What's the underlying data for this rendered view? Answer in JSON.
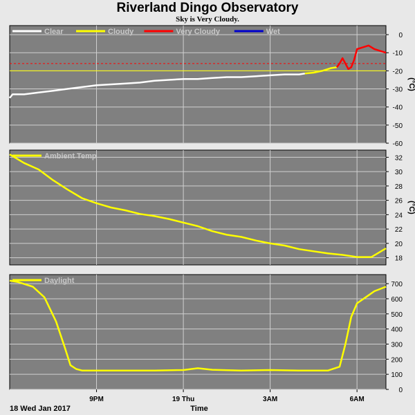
{
  "header": {
    "title": "Riverland Dingo Observatory",
    "subtitle": "Sky is Very Cloudy."
  },
  "footer": {
    "date_label": "18 Wed Jan 2017",
    "time_label": "Time"
  },
  "colors": {
    "background": "#e8e8e8",
    "plot_bg": "#808080",
    "grid": "#d0d0d0",
    "clear": "#ffffff",
    "cloudy": "#ffff00",
    "very_cloudy": "#ff0000",
    "wet": "#0000cc",
    "threshold": "#ff0000"
  },
  "chart_data": [
    {
      "type": "line",
      "name": "sky",
      "x_ticks": [
        "9PM",
        "19 Thu",
        "3AM",
        "6AM"
      ],
      "ylim": [
        -60,
        5
      ],
      "y_ticks": [
        0,
        -10,
        -20,
        -30,
        -40,
        -50,
        -60
      ],
      "ylabel": "(°C)",
      "legend_position": "top-left",
      "legend": [
        {
          "label": "Clear",
          "color": "#ffffff"
        },
        {
          "label": "Cloudy",
          "color": "#ffff00"
        },
        {
          "label": "Very Cloudy",
          "color": "#ff0000"
        },
        {
          "label": "Wet",
          "color": "#0000cc"
        }
      ],
      "thresholds": [
        {
          "value": -16,
          "style": "dashed",
          "color": "#ff0000"
        },
        {
          "value": -20,
          "style": "solid",
          "color": "#ffff00"
        }
      ],
      "series": [
        {
          "condition": "clear",
          "color": "#ffffff",
          "x": [
            0,
            0.1,
            0.5,
            1,
            1.5,
            2,
            2.5,
            3,
            3.5,
            4,
            4.5,
            5,
            5.5,
            6,
            6.5,
            7,
            7.5,
            8,
            8.5,
            9,
            9.5,
            10,
            10.2
          ],
          "y": [
            -35,
            -33,
            -33,
            -32,
            -31,
            -30,
            -29,
            -28,
            -27.5,
            -27,
            -26.5,
            -25.5,
            -25,
            -24.5,
            -24.5,
            -24,
            -23.5,
            -23.5,
            -23,
            -22.5,
            -22,
            -22,
            -21.5
          ]
        },
        {
          "condition": "cloudy",
          "color": "#ffff00",
          "x": [
            10.2,
            10.5,
            10.8,
            11.0,
            11.1,
            11.3
          ],
          "y": [
            -21.5,
            -21,
            -20,
            -19,
            -18.5,
            -18
          ]
        },
        {
          "condition": "very_cloudy",
          "color": "#ff0000",
          "x": [
            11.3,
            11.4,
            11.5,
            11.6,
            11.7,
            11.8,
            11.9,
            12.0,
            12.2,
            12.4,
            12.6,
            12.8,
            13.0
          ],
          "y": [
            -18,
            -16,
            -13,
            -16,
            -19,
            -18,
            -14,
            -8,
            -7,
            -6,
            -8,
            -9,
            -10
          ]
        }
      ]
    },
    {
      "type": "line",
      "name": "ambient",
      "x_ticks": [
        "9PM",
        "19 Thu",
        "3AM",
        "6AM"
      ],
      "ylim": [
        17,
        33
      ],
      "y_ticks": [
        32,
        30,
        28,
        26,
        24,
        22,
        20,
        18
      ],
      "ylabel": "(°C)",
      "legend_position": "top-left",
      "legend": [
        {
          "label": "Ambient Temp",
          "color": "#ffff00"
        }
      ],
      "series": [
        {
          "color": "#ffff00",
          "x": [
            0,
            0.5,
            1,
            1.5,
            2,
            2.5,
            3,
            3.5,
            4,
            4.5,
            5,
            5.5,
            6,
            6.5,
            7,
            7.5,
            8,
            8.5,
            9,
            9.5,
            10,
            10.5,
            11,
            11.5,
            12,
            12.5,
            13
          ],
          "y": [
            32.4,
            31.2,
            30.3,
            28.8,
            27.5,
            26.3,
            25.6,
            25.0,
            24.6,
            24.1,
            23.8,
            23.4,
            22.9,
            22.4,
            21.7,
            21.2,
            20.9,
            20.4,
            20.0,
            19.7,
            19.2,
            18.9,
            18.6,
            18.4,
            18.1,
            18.1,
            19.3
          ]
        }
      ]
    },
    {
      "type": "line",
      "name": "daylight",
      "x_ticks": [
        "9PM",
        "19 Thu",
        "3AM",
        "6AM"
      ],
      "ylim": [
        0,
        760
      ],
      "y_ticks": [
        700,
        600,
        500,
        400,
        300,
        200,
        100,
        0
      ],
      "legend_position": "top-left",
      "legend": [
        {
          "label": "Daylight",
          "color": "#ffff00"
        }
      ],
      "series": [
        {
          "color": "#ffff00",
          "x": [
            0,
            0.3,
            0.8,
            1.2,
            1.6,
            1.9,
            2.1,
            2.3,
            2.5,
            3,
            4,
            5,
            6,
            6.5,
            7,
            8,
            9,
            10,
            11,
            11.4,
            11.6,
            11.8,
            12.0,
            12.3,
            12.6,
            13
          ],
          "y": [
            720,
            710,
            680,
            610,
            450,
            280,
            160,
            135,
            125,
            125,
            125,
            125,
            128,
            140,
            130,
            125,
            128,
            125,
            125,
            150,
            300,
            480,
            570,
            610,
            650,
            680
          ]
        }
      ]
    }
  ]
}
